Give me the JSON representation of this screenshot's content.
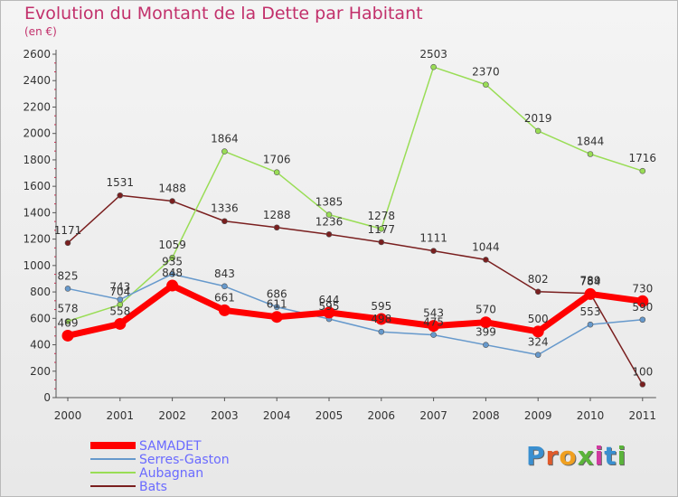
{
  "title": "Evolution du Montant de la Dette par Habitant",
  "subtitle": "(en €)",
  "logo": "Proxiti",
  "chart_data": {
    "type": "line",
    "x": [
      "2000",
      "2001",
      "2002",
      "2003",
      "2004",
      "2005",
      "2006",
      "2007",
      "2008",
      "2009",
      "2010",
      "2011"
    ],
    "ylim": [
      0,
      2600
    ],
    "yticks": [
      0,
      200,
      400,
      600,
      800,
      1000,
      1200,
      1400,
      1600,
      1800,
      2000,
      2200,
      2400,
      2600
    ],
    "grid": false,
    "legend_position": "bottom-left",
    "series": [
      {
        "name": "SAMADET",
        "color": "#ff0000",
        "width": 7,
        "values": [
          469,
          558,
          848,
          661,
          611,
          644,
          595,
          543,
          570,
          500,
          784,
          730
        ]
      },
      {
        "name": "Serres-Gaston",
        "color": "#6699cc",
        "width": 1.5,
        "values": [
          825,
          743,
          935,
          843,
          686,
          595,
          498,
          475,
          399,
          324,
          553,
          590
        ]
      },
      {
        "name": "Aubagnan",
        "color": "#99dd55",
        "width": 1.5,
        "values": [
          578,
          704,
          1059,
          1864,
          1706,
          1385,
          1278,
          2503,
          2370,
          2019,
          1844,
          1716
        ]
      },
      {
        "name": "Bats",
        "color": "#7a1f1f",
        "width": 1.5,
        "values": [
          1171,
          1531,
          1488,
          1336,
          1288,
          1236,
          1177,
          1111,
          1044,
          802,
          789,
          100
        ]
      }
    ]
  }
}
